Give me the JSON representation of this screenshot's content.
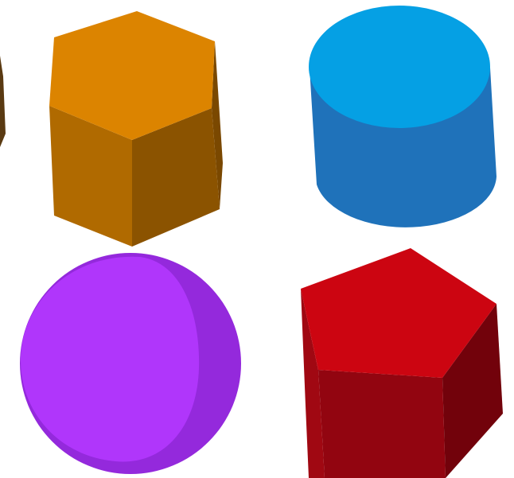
{
  "scene": {
    "background": "#ffffff",
    "shapes": [
      {
        "kind": "hexagonal-prism",
        "colors": {
          "top": "#dc8400",
          "left": "#b06a00",
          "front": "#8b5300",
          "right": "#7a4800"
        }
      },
      {
        "kind": "cylinder",
        "colors": {
          "top": "#05a0e4",
          "body": "#1f72ba"
        }
      },
      {
        "kind": "sphere",
        "colors": {
          "light": "#b036fb",
          "shade": "#9429dc"
        }
      },
      {
        "kind": "pentagonal-prism",
        "colors": {
          "top": "#cc0511",
          "left": "#a00812",
          "front": "#920510",
          "right": "#72020b"
        }
      },
      {
        "kind": "partial-object",
        "colors": {
          "dark": "#5a3a12"
        }
      }
    ]
  }
}
